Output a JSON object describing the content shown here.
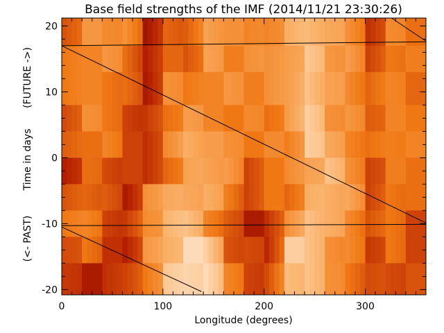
{
  "chart_data": {
    "type": "heatmap",
    "title": "Base field strengths of the IMF (2014/11/21 23:30:26)",
    "xlabel": "Longitude (degrees)",
    "ylabel": "Time in days",
    "ylabel_past": "(<- PAST)",
    "ylabel_future": "(FUTURE ->)",
    "xlim": [
      0,
      360
    ],
    "ylim": [
      -20.8,
      21.2
    ],
    "xticks": [
      0,
      100,
      200,
      300
    ],
    "xtick_labels": [
      "0",
      "100",
      "200",
      "300"
    ],
    "yticks": [
      -20,
      -10,
      0,
      10,
      20
    ],
    "ytick_labels": [
      "-20",
      "-10",
      "0",
      "10",
      "20"
    ],
    "colormap": [
      "#500000",
      "#b41e00",
      "#f07814",
      "#fab46e",
      "#fff5eb"
    ],
    "grid": false,
    "longitude_bin_edges": [
      0,
      20,
      40,
      60,
      80,
      100,
      120,
      140,
      160,
      180,
      200,
      220,
      240,
      260,
      280,
      300,
      320,
      340,
      360
    ],
    "time_bin_edges": [
      21.2,
      17,
      13,
      8,
      4,
      0,
      -4,
      -8,
      -12,
      -16,
      -20.8
    ],
    "relative_intensity": [
      [
        0.45,
        0.6,
        0.6,
        0.55,
        0.2,
        0.5,
        0.4,
        0.7,
        0.55,
        0.55,
        0.6,
        0.7,
        0.8,
        0.65,
        0.6,
        0.35,
        0.55,
        0.5
      ],
      [
        0.5,
        0.6,
        0.6,
        0.5,
        0.2,
        0.45,
        0.45,
        0.65,
        0.55,
        0.55,
        0.6,
        0.7,
        0.8,
        0.65,
        0.6,
        0.35,
        0.55,
        0.5
      ],
      [
        0.45,
        0.55,
        0.55,
        0.45,
        0.25,
        0.55,
        0.5,
        0.6,
        0.6,
        0.55,
        0.55,
        0.65,
        0.85,
        0.65,
        0.6,
        0.4,
        0.55,
        0.5
      ],
      [
        0.4,
        0.55,
        0.5,
        0.4,
        0.3,
        0.5,
        0.6,
        0.55,
        0.55,
        0.55,
        0.5,
        0.6,
        0.85,
        0.65,
        0.6,
        0.45,
        0.5,
        0.5
      ],
      [
        0.4,
        0.5,
        0.5,
        0.35,
        0.35,
        0.55,
        0.75,
        0.6,
        0.6,
        0.55,
        0.55,
        0.55,
        0.8,
        0.7,
        0.6,
        0.45,
        0.55,
        0.5
      ],
      [
        0.3,
        0.45,
        0.4,
        0.3,
        0.3,
        0.5,
        0.65,
        0.7,
        0.6,
        0.35,
        0.55,
        0.55,
        0.7,
        0.75,
        0.6,
        0.4,
        0.5,
        0.5
      ],
      [
        0.4,
        0.5,
        0.4,
        0.25,
        0.55,
        0.7,
        0.75,
        0.7,
        0.55,
        0.3,
        0.5,
        0.5,
        0.7,
        0.75,
        0.65,
        0.35,
        0.55,
        0.45
      ],
      [
        0.45,
        0.55,
        0.4,
        0.3,
        0.6,
        0.7,
        0.8,
        0.6,
        0.4,
        0.25,
        0.25,
        0.6,
        0.85,
        0.7,
        0.6,
        0.35,
        0.5,
        0.4
      ],
      [
        0.4,
        0.45,
        0.3,
        0.3,
        0.6,
        0.75,
        0.85,
        0.85,
        0.45,
        0.35,
        0.3,
        0.8,
        0.8,
        0.65,
        0.55,
        0.35,
        0.45,
        0.35
      ],
      [
        0.3,
        0.25,
        0.25,
        0.35,
        0.55,
        0.8,
        0.9,
        0.85,
        0.55,
        0.4,
        0.35,
        0.8,
        0.75,
        0.6,
        0.55,
        0.35,
        0.4,
        0.35
      ]
    ],
    "overlay_lines": [
      {
        "from": [
          0,
          17.0
        ],
        "to": [
          360,
          17.6
        ]
      },
      {
        "from": [
          0,
          17.0
        ],
        "to": [
          360,
          -9.9
        ]
      },
      {
        "from": [
          0,
          -10.3
        ],
        "to": [
          360,
          -10.1
        ]
      },
      {
        "from": [
          0,
          -10.5
        ],
        "to": [
          138,
          -20.3
        ]
      },
      {
        "from": [
          326,
          21.2
        ],
        "to": [
          360,
          17.7
        ]
      }
    ]
  }
}
